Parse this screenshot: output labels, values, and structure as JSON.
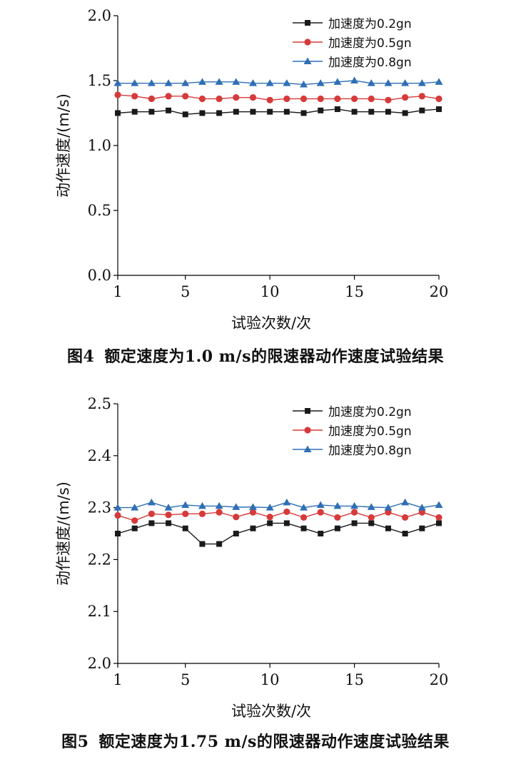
{
  "charts": [
    {
      "caption_number": "图4",
      "caption_text": "额定速度为1.0 m/s的限速器动作速度试验结果"
    },
    {
      "caption_number": "图5",
      "caption_text": "额定速度为1.75 m/s的限速器动作速度试验结果"
    }
  ],
  "chart_data": [
    {
      "type": "line",
      "xlabel": "试验次数/次",
      "ylabel": "动作速度/(m/s)",
      "xlim": [
        1,
        20
      ],
      "ylim": [
        0.0,
        2.0
      ],
      "xticks": [
        1,
        5,
        10,
        15,
        20
      ],
      "yticks": [
        "0.0",
        "0.5",
        "1.0",
        "1.5",
        "2.0"
      ],
      "grid": false,
      "legend_position": "top-right",
      "x": [
        1,
        2,
        3,
        4,
        5,
        6,
        7,
        8,
        9,
        10,
        11,
        12,
        13,
        14,
        15,
        16,
        17,
        18,
        19,
        20
      ],
      "series": [
        {
          "name": "加速度为0.2gn",
          "color": "#1a1a1a",
          "marker": "square",
          "values": [
            1.25,
            1.26,
            1.26,
            1.27,
            1.24,
            1.25,
            1.25,
            1.26,
            1.26,
            1.26,
            1.26,
            1.25,
            1.27,
            1.28,
            1.26,
            1.26,
            1.26,
            1.25,
            1.27,
            1.28
          ]
        },
        {
          "name": "加速度为0.5gn",
          "color": "#d63a3a",
          "marker": "circle",
          "values": [
            1.39,
            1.38,
            1.36,
            1.38,
            1.38,
            1.36,
            1.36,
            1.37,
            1.37,
            1.35,
            1.36,
            1.36,
            1.36,
            1.36,
            1.36,
            1.36,
            1.35,
            1.37,
            1.38,
            1.36
          ]
        },
        {
          "name": "加速度为0.8gn",
          "color": "#2f6fb5",
          "marker": "triangle",
          "values": [
            1.48,
            1.48,
            1.48,
            1.48,
            1.48,
            1.49,
            1.49,
            1.49,
            1.48,
            1.48,
            1.48,
            1.47,
            1.48,
            1.49,
            1.5,
            1.48,
            1.48,
            1.48,
            1.48,
            1.49
          ]
        }
      ]
    },
    {
      "type": "line",
      "xlabel": "试验次数/次",
      "ylabel": "动作速度/(m/s)",
      "xlim": [
        1,
        20
      ],
      "ylim": [
        2.0,
        2.5
      ],
      "xticks": [
        1,
        5,
        10,
        15,
        20
      ],
      "yticks": [
        "2.0",
        "2.1",
        "2.2",
        "2.3",
        "2.4",
        "2.5"
      ],
      "grid": false,
      "legend_position": "top-right",
      "x": [
        1,
        2,
        3,
        4,
        5,
        6,
        7,
        8,
        9,
        10,
        11,
        12,
        13,
        14,
        15,
        16,
        17,
        18,
        19,
        20
      ],
      "series": [
        {
          "name": "加速度为0.2gn",
          "color": "#1a1a1a",
          "marker": "square",
          "values": [
            2.25,
            2.26,
            2.27,
            2.27,
            2.26,
            2.23,
            2.23,
            2.25,
            2.26,
            2.27,
            2.27,
            2.26,
            2.25,
            2.26,
            2.27,
            2.27,
            2.26,
            2.25,
            2.26,
            2.27
          ]
        },
        {
          "name": "加速度为0.5gn",
          "color": "#d63a3a",
          "marker": "circle",
          "values": [
            2.285,
            2.275,
            2.288,
            2.286,
            2.288,
            2.288,
            2.291,
            2.282,
            2.291,
            2.282,
            2.292,
            2.281,
            2.291,
            2.281,
            2.291,
            2.281,
            2.291,
            2.281,
            2.291,
            2.281
          ]
        },
        {
          "name": "加速度为0.8gn",
          "color": "#2f6fb5",
          "marker": "triangle",
          "values": [
            2.3,
            2.3,
            2.31,
            2.3,
            2.305,
            2.303,
            2.303,
            2.301,
            2.301,
            2.3,
            2.31,
            2.3,
            2.305,
            2.303,
            2.303,
            2.301,
            2.3,
            2.31,
            2.3,
            2.305
          ]
        }
      ]
    }
  ]
}
